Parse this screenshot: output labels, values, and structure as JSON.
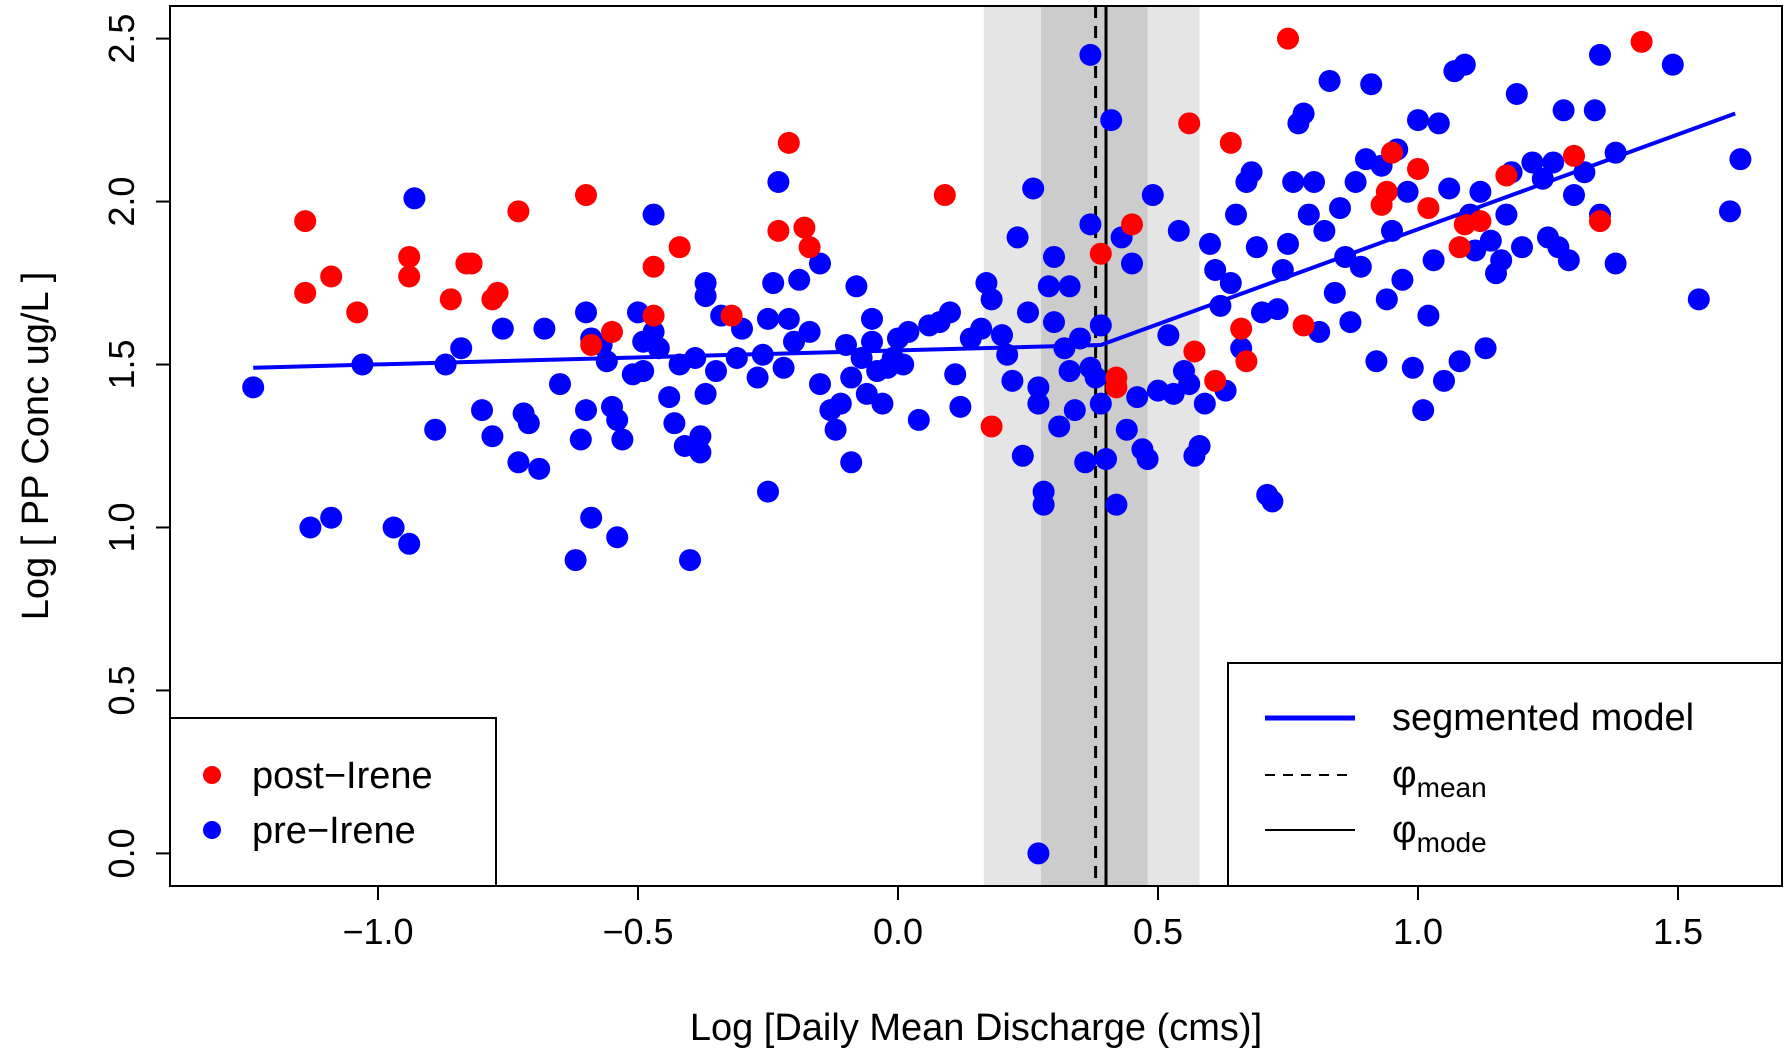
{
  "chart_data": {
    "type": "scatter",
    "xlabel": "Log [Daily Mean Discharge (cms)]",
    "ylabel": "Log [ PP Conc ug/L ]",
    "xlim": [
      -1.4,
      1.7
    ],
    "ylim": [
      -0.1,
      2.6
    ],
    "x_ticks": [
      "−1.0",
      "−0.5",
      "0.0",
      "0.5",
      "1.0",
      "1.5"
    ],
    "y_ticks": [
      "0.0",
      "0.5",
      "1.0",
      "1.5",
      "2.0",
      "2.5"
    ],
    "x_tick_values": [
      -1.0,
      -0.5,
      0.0,
      0.5,
      1.0,
      1.5
    ],
    "y_tick_values": [
      0.0,
      0.5,
      1.0,
      1.5,
      2.0,
      2.5
    ],
    "grid": false,
    "shaded_bands": [
      {
        "x_range": [
          0.165,
          0.58
        ],
        "color": "#e5e5e5"
      },
      {
        "x_range": [
          0.275,
          0.48
        ],
        "color": "#cccccc"
      }
    ],
    "breakpoints": {
      "phi_mean": 0.38,
      "phi_mode": 0.4
    },
    "segmented_model": {
      "color": "#0000ff",
      "x": [
        -1.24,
        0.39,
        1.61
      ],
      "y": [
        1.49,
        1.56,
        2.27
      ]
    },
    "series": [
      {
        "name": "post−Irene",
        "color": "#ff0000",
        "points": [
          [
            -1.14,
            1.94
          ],
          [
            -1.14,
            1.72
          ],
          [
            -1.09,
            1.77
          ],
          [
            -1.04,
            1.66
          ],
          [
            -0.94,
            1.83
          ],
          [
            -0.94,
            1.77
          ],
          [
            -0.86,
            1.7
          ],
          [
            -0.83,
            1.81
          ],
          [
            -0.82,
            1.81
          ],
          [
            -0.78,
            1.7
          ],
          [
            -0.77,
            1.72
          ],
          [
            -0.73,
            1.97
          ],
          [
            -0.6,
            2.02
          ],
          [
            -0.59,
            1.56
          ],
          [
            -0.55,
            1.6
          ],
          [
            -0.47,
            1.8
          ],
          [
            -0.47,
            1.65
          ],
          [
            -0.42,
            1.86
          ],
          [
            -0.32,
            1.65
          ],
          [
            -0.23,
            1.91
          ],
          [
            -0.21,
            2.18
          ],
          [
            -0.18,
            1.92
          ],
          [
            -0.17,
            1.86
          ],
          [
            0.09,
            2.02
          ],
          [
            0.18,
            1.31
          ],
          [
            0.39,
            1.84
          ],
          [
            0.42,
            1.46
          ],
          [
            0.42,
            1.43
          ],
          [
            0.45,
            1.93
          ],
          [
            0.56,
            2.24
          ],
          [
            0.57,
            1.54
          ],
          [
            0.61,
            1.45
          ],
          [
            0.64,
            2.18
          ],
          [
            0.66,
            1.61
          ],
          [
            0.67,
            1.51
          ],
          [
            0.75,
            2.5
          ],
          [
            0.78,
            1.62
          ],
          [
            0.93,
            1.99
          ],
          [
            0.94,
            2.03
          ],
          [
            0.95,
            2.15
          ],
          [
            1.0,
            2.1
          ],
          [
            1.02,
            1.98
          ],
          [
            1.08,
            1.86
          ],
          [
            1.09,
            1.93
          ],
          [
            1.12,
            1.94
          ],
          [
            1.17,
            2.08
          ],
          [
            1.3,
            2.14
          ],
          [
            1.35,
            1.94
          ],
          [
            1.43,
            2.49
          ]
        ]
      },
      {
        "name": "pre−Irene",
        "color": "#0000ff",
        "points": [
          [
            -1.24,
            1.43
          ],
          [
            -1.13,
            1.0
          ],
          [
            -1.09,
            1.03
          ],
          [
            -1.03,
            1.5
          ],
          [
            -0.97,
            1.0
          ],
          [
            -0.94,
            0.95
          ],
          [
            -0.93,
            2.01
          ],
          [
            -0.89,
            1.3
          ],
          [
            -0.87,
            1.5
          ],
          [
            -0.84,
            1.55
          ],
          [
            -0.8,
            1.36
          ],
          [
            -0.78,
            1.28
          ],
          [
            -0.76,
            1.61
          ],
          [
            -0.73,
            1.2
          ],
          [
            -0.72,
            1.35
          ],
          [
            -0.71,
            1.32
          ],
          [
            -0.69,
            1.18
          ],
          [
            -0.68,
            1.61
          ],
          [
            -0.65,
            1.44
          ],
          [
            -0.62,
            0.9
          ],
          [
            -0.61,
            1.27
          ],
          [
            -0.6,
            1.36
          ],
          [
            -0.6,
            1.66
          ],
          [
            -0.59,
            1.03
          ],
          [
            -0.59,
            1.58
          ],
          [
            -0.57,
            1.56
          ],
          [
            -0.56,
            1.51
          ],
          [
            -0.55,
            1.37
          ],
          [
            -0.54,
            1.33
          ],
          [
            -0.54,
            0.97
          ],
          [
            -0.53,
            1.27
          ],
          [
            -0.51,
            1.47
          ],
          [
            -0.5,
            1.66
          ],
          [
            -0.49,
            1.48
          ],
          [
            -0.49,
            1.57
          ],
          [
            -0.47,
            1.96
          ],
          [
            -0.47,
            1.6
          ],
          [
            -0.46,
            1.55
          ],
          [
            -0.44,
            1.4
          ],
          [
            -0.43,
            1.32
          ],
          [
            -0.42,
            1.5
          ],
          [
            -0.41,
            1.25
          ],
          [
            -0.4,
            0.9
          ],
          [
            -0.39,
            1.52
          ],
          [
            -0.38,
            1.28
          ],
          [
            -0.38,
            1.23
          ],
          [
            -0.37,
            1.41
          ],
          [
            -0.37,
            1.75
          ],
          [
            -0.37,
            1.71
          ],
          [
            -0.35,
            1.48
          ],
          [
            -0.34,
            1.65
          ],
          [
            -0.31,
            1.52
          ],
          [
            -0.3,
            1.61
          ],
          [
            -0.27,
            1.46
          ],
          [
            -0.26,
            1.53
          ],
          [
            -0.25,
            1.64
          ],
          [
            -0.25,
            1.11
          ],
          [
            -0.24,
            1.75
          ],
          [
            -0.23,
            2.06
          ],
          [
            -0.22,
            1.49
          ],
          [
            -0.21,
            1.64
          ],
          [
            -0.2,
            1.57
          ],
          [
            -0.19,
            1.76
          ],
          [
            -0.17,
            1.6
          ],
          [
            -0.15,
            1.81
          ],
          [
            -0.15,
            1.44
          ],
          [
            -0.13,
            1.36
          ],
          [
            -0.12,
            1.3
          ],
          [
            -0.11,
            1.38
          ],
          [
            -0.1,
            1.56
          ],
          [
            -0.09,
            1.46
          ],
          [
            -0.09,
            1.2
          ],
          [
            -0.08,
            1.74
          ],
          [
            -0.07,
            1.52
          ],
          [
            -0.06,
            1.41
          ],
          [
            -0.05,
            1.57
          ],
          [
            -0.05,
            1.64
          ],
          [
            -0.04,
            1.48
          ],
          [
            -0.03,
            1.38
          ],
          [
            -0.02,
            1.49
          ],
          [
            -0.01,
            1.52
          ],
          [
            0.0,
            1.58
          ],
          [
            0.01,
            1.5
          ],
          [
            0.02,
            1.6
          ],
          [
            0.04,
            1.33
          ],
          [
            0.06,
            1.62
          ],
          [
            0.08,
            1.63
          ],
          [
            0.1,
            1.66
          ],
          [
            0.11,
            1.47
          ],
          [
            0.12,
            1.37
          ],
          [
            0.14,
            1.58
          ],
          [
            0.16,
            1.61
          ],
          [
            0.17,
            1.75
          ],
          [
            0.18,
            1.7
          ],
          [
            0.2,
            1.59
          ],
          [
            0.21,
            1.53
          ],
          [
            0.22,
            1.45
          ],
          [
            0.23,
            1.89
          ],
          [
            0.24,
            1.22
          ],
          [
            0.25,
            1.66
          ],
          [
            0.26,
            2.04
          ],
          [
            0.27,
            1.43
          ],
          [
            0.27,
            1.38
          ],
          [
            0.28,
            1.11
          ],
          [
            0.28,
            1.07
          ],
          [
            0.29,
            1.74
          ],
          [
            0.3,
            1.83
          ],
          [
            0.3,
            1.63
          ],
          [
            0.31,
            1.31
          ],
          [
            0.32,
            1.55
          ],
          [
            0.33,
            1.48
          ],
          [
            0.33,
            1.74
          ],
          [
            0.34,
            1.36
          ],
          [
            0.35,
            1.58
          ],
          [
            0.36,
            1.2
          ],
          [
            0.37,
            1.49
          ],
          [
            0.37,
            1.93
          ],
          [
            0.38,
            1.46
          ],
          [
            0.39,
            1.62
          ],
          [
            0.39,
            1.38
          ],
          [
            0.4,
            1.21
          ],
          [
            0.41,
            2.25
          ],
          [
            0.42,
            1.07
          ],
          [
            0.43,
            1.89
          ],
          [
            0.44,
            1.3
          ],
          [
            0.45,
            1.81
          ],
          [
            0.46,
            1.4
          ],
          [
            0.47,
            1.24
          ],
          [
            0.48,
            1.21
          ],
          [
            0.49,
            2.02
          ],
          [
            0.5,
            1.42
          ],
          [
            0.52,
            1.59
          ],
          [
            0.53,
            1.41
          ],
          [
            0.54,
            1.91
          ],
          [
            0.55,
            1.48
          ],
          [
            0.56,
            1.44
          ],
          [
            0.57,
            1.22
          ],
          [
            0.58,
            1.25
          ],
          [
            0.59,
            1.38
          ],
          [
            0.6,
            1.87
          ],
          [
            0.61,
            1.79
          ],
          [
            0.62,
            1.68
          ],
          [
            0.63,
            1.42
          ],
          [
            0.64,
            1.75
          ],
          [
            0.65,
            1.96
          ],
          [
            0.66,
            1.55
          ],
          [
            0.67,
            2.06
          ],
          [
            0.68,
            2.09
          ],
          [
            0.69,
            1.86
          ],
          [
            0.7,
            1.66
          ],
          [
            0.71,
            1.1
          ],
          [
            0.72,
            1.08
          ],
          [
            0.73,
            1.67
          ],
          [
            0.74,
            1.79
          ],
          [
            0.75,
            1.87
          ],
          [
            0.76,
            2.06
          ],
          [
            0.77,
            2.24
          ],
          [
            0.78,
            2.27
          ],
          [
            0.79,
            1.96
          ],
          [
            0.8,
            2.06
          ],
          [
            0.81,
            1.6
          ],
          [
            0.82,
            1.91
          ],
          [
            0.83,
            2.37
          ],
          [
            0.84,
            1.72
          ],
          [
            0.85,
            1.98
          ],
          [
            0.86,
            1.83
          ],
          [
            0.87,
            1.63
          ],
          [
            0.88,
            2.06
          ],
          [
            0.89,
            1.8
          ],
          [
            0.9,
            2.13
          ],
          [
            0.91,
            2.36
          ],
          [
            0.92,
            1.51
          ],
          [
            0.93,
            2.11
          ],
          [
            0.94,
            1.7
          ],
          [
            0.95,
            1.91
          ],
          [
            0.96,
            2.16
          ],
          [
            0.97,
            1.76
          ],
          [
            0.98,
            2.03
          ],
          [
            0.99,
            1.49
          ],
          [
            1.0,
            2.25
          ],
          [
            1.01,
            1.36
          ],
          [
            1.02,
            1.65
          ],
          [
            1.03,
            1.82
          ],
          [
            1.04,
            2.24
          ],
          [
            1.05,
            1.45
          ],
          [
            1.06,
            2.04
          ],
          [
            1.07,
            2.4
          ],
          [
            1.08,
            1.51
          ],
          [
            1.09,
            2.42
          ],
          [
            1.1,
            1.96
          ],
          [
            1.11,
            1.85
          ],
          [
            1.12,
            2.03
          ],
          [
            1.13,
            1.55
          ],
          [
            1.14,
            1.88
          ],
          [
            1.15,
            1.78
          ],
          [
            1.16,
            1.82
          ],
          [
            1.17,
            1.96
          ],
          [
            1.18,
            2.09
          ],
          [
            1.19,
            2.33
          ],
          [
            1.2,
            1.86
          ],
          [
            1.22,
            2.12
          ],
          [
            1.24,
            2.07
          ],
          [
            1.25,
            1.89
          ],
          [
            1.26,
            2.12
          ],
          [
            1.27,
            1.86
          ],
          [
            1.28,
            2.28
          ],
          [
            1.29,
            1.82
          ],
          [
            1.3,
            2.02
          ],
          [
            1.32,
            2.09
          ],
          [
            1.34,
            2.28
          ],
          [
            1.35,
            1.96
          ],
          [
            1.35,
            2.45
          ],
          [
            1.38,
            1.81
          ],
          [
            1.38,
            2.15
          ],
          [
            1.49,
            2.42
          ],
          [
            1.54,
            1.7
          ],
          [
            1.6,
            1.97
          ],
          [
            1.62,
            2.13
          ],
          [
            0.37,
            2.45
          ],
          [
            0.27,
            0.0
          ]
        ]
      }
    ],
    "legend_points": {
      "position": "bottom-left",
      "entries": [
        "post−Irene",
        "pre−Irene"
      ]
    },
    "legend_lines": {
      "position": "bottom-right",
      "segmented_label": "segmented model",
      "phi_symbol": "φ",
      "mean_sub": "mean",
      "mode_sub": "mode"
    }
  }
}
